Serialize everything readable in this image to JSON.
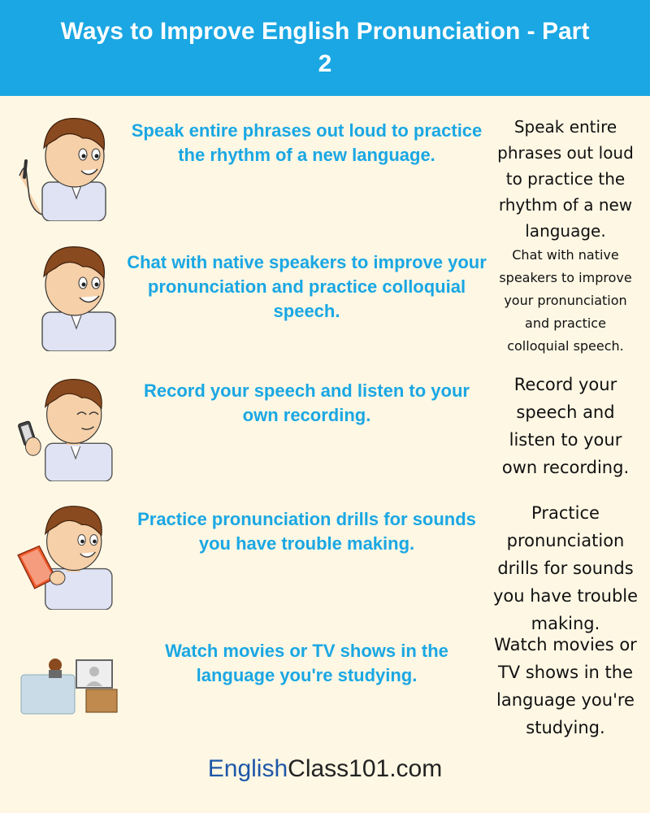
{
  "header": {
    "title": "Ways to Improve English Pronunciation - Part 2"
  },
  "tips": [
    {
      "main": "Speak entire phrases out loud to practice the rhythm of a new language.",
      "side": "Speak entire phrases out loud to practice the rhythm of a new language."
    },
    {
      "main": "Chat with native speakers to improve your pronunciation and practice colloquial speech.",
      "side": "Chat with native speakers to improve your pronunciation and practice colloquial speech."
    },
    {
      "main": "Record your speech and listen to your own recording.",
      "side": "Record your speech and listen to your own recording."
    },
    {
      "main": "Practice pronunciation drills for sounds you have trouble making.",
      "side": "Practice pronunciation drills for sounds you have trouble making."
    },
    {
      "main": "Watch movies or TV shows in the language you're studying.",
      "side": "Watch movies or TV shows in the language you're studying."
    }
  ],
  "footer": {
    "brand_part1": "English",
    "brand_part2": "Class101.com"
  },
  "colors": {
    "header_bg": "#1aa7e3",
    "accent_text": "#1aa7e3",
    "background": "#fdf7e4",
    "brand_blue": "#1f57a8"
  }
}
